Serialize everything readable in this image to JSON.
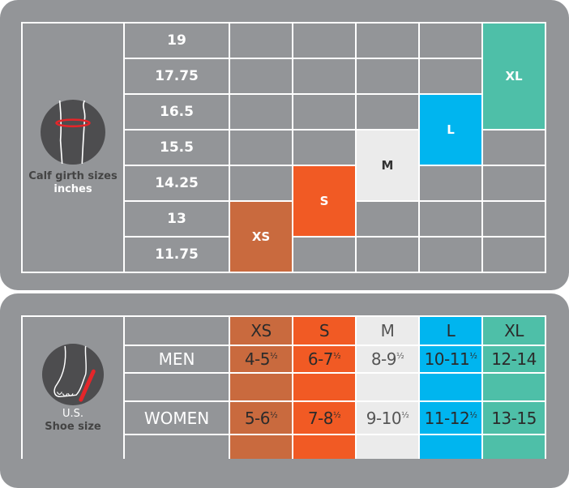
{
  "calf": {
    "caption_line1": "Calf girth sizes",
    "caption_line2": "inches",
    "girths": [
      "19",
      "17.75",
      "16.5",
      "15.5",
      "14.25",
      "13",
      "11.75"
    ],
    "sizes": {
      "xs": "XS",
      "s": "S",
      "m": "M",
      "l": "L",
      "xl": "XL"
    }
  },
  "shoe": {
    "caption_line1": "U.S.",
    "caption_line2": "Shoe size",
    "headers": [
      "XS",
      "S",
      "M",
      "L",
      "XL"
    ],
    "row_labels": {
      "men": "MEN",
      "women": "WOMEN"
    },
    "men": [
      {
        "main": "4-5",
        "frac": "½"
      },
      {
        "main": "6-7",
        "frac": "½"
      },
      {
        "main": "8-9",
        "frac": "½"
      },
      {
        "main": "10-11",
        "frac": "½"
      },
      {
        "main": "12-14",
        "frac": ""
      }
    ],
    "women": [
      {
        "main": "5-6",
        "frac": "½"
      },
      {
        "main": "7-8",
        "frac": "½"
      },
      {
        "main": "9-10",
        "frac": "½"
      },
      {
        "main": "11-12",
        "frac": "½"
      },
      {
        "main": "13-15",
        "frac": ""
      }
    ]
  },
  "colors": {
    "panel": "#939598",
    "xs": "#c96a3e",
    "s": "#f15a24",
    "m": "#ebebeb",
    "l": "#00b5ef",
    "xl": "#4ebfa8",
    "icon_accent": "#e4262a"
  }
}
